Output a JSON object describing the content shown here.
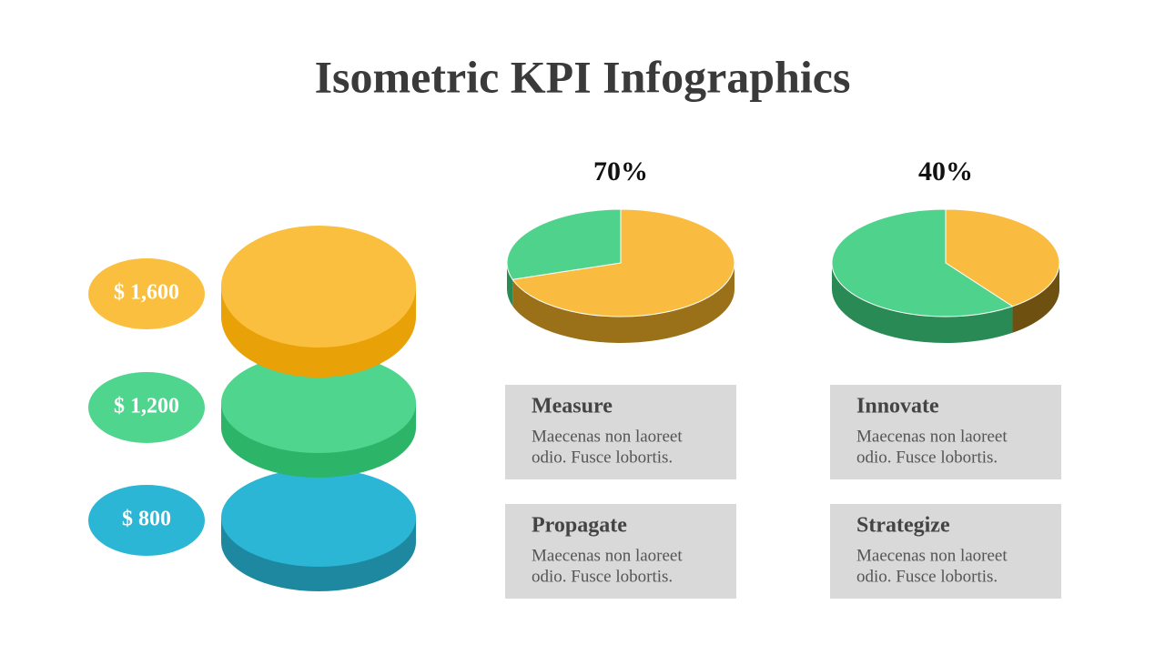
{
  "title": "Isometric KPI Infographics",
  "stack": [
    {
      "label": "$ 1,600",
      "color": "#fbbf3f",
      "side": "#e8a106"
    },
    {
      "label": "$ 1,200",
      "color": "#50d58e",
      "side": "#2cb468"
    },
    {
      "label": "$ 800",
      "color": "#2bb6d6",
      "side": "#1e88a0"
    }
  ],
  "pies": [
    {
      "value": 70,
      "label": "70%",
      "color": "#f9bc40",
      "side": "#9a7018",
      "rest_color": "#4fd38c",
      "rest_side": "#2a8a55"
    },
    {
      "value": 40,
      "label": "40%",
      "color": "#f9bc40",
      "side": "#6e5010",
      "rest_color": "#4fd38c",
      "rest_side": "#2a8a55"
    }
  ],
  "cards": [
    {
      "title": "Measure",
      "lines": [
        "Maecenas non laoreet",
        "odio. Fusce lobortis."
      ]
    },
    {
      "title": "Innovate",
      "lines": [
        "Maecenas non laoreet",
        "odio. Fusce lobortis."
      ]
    },
    {
      "title": "Propagate",
      "lines": [
        "Maecenas non laoreet",
        "odio. Fusce lobortis."
      ]
    },
    {
      "title": "Strategize",
      "lines": [
        "Maecenas non laoreet",
        "odio. Fusce lobortis."
      ]
    }
  ]
}
